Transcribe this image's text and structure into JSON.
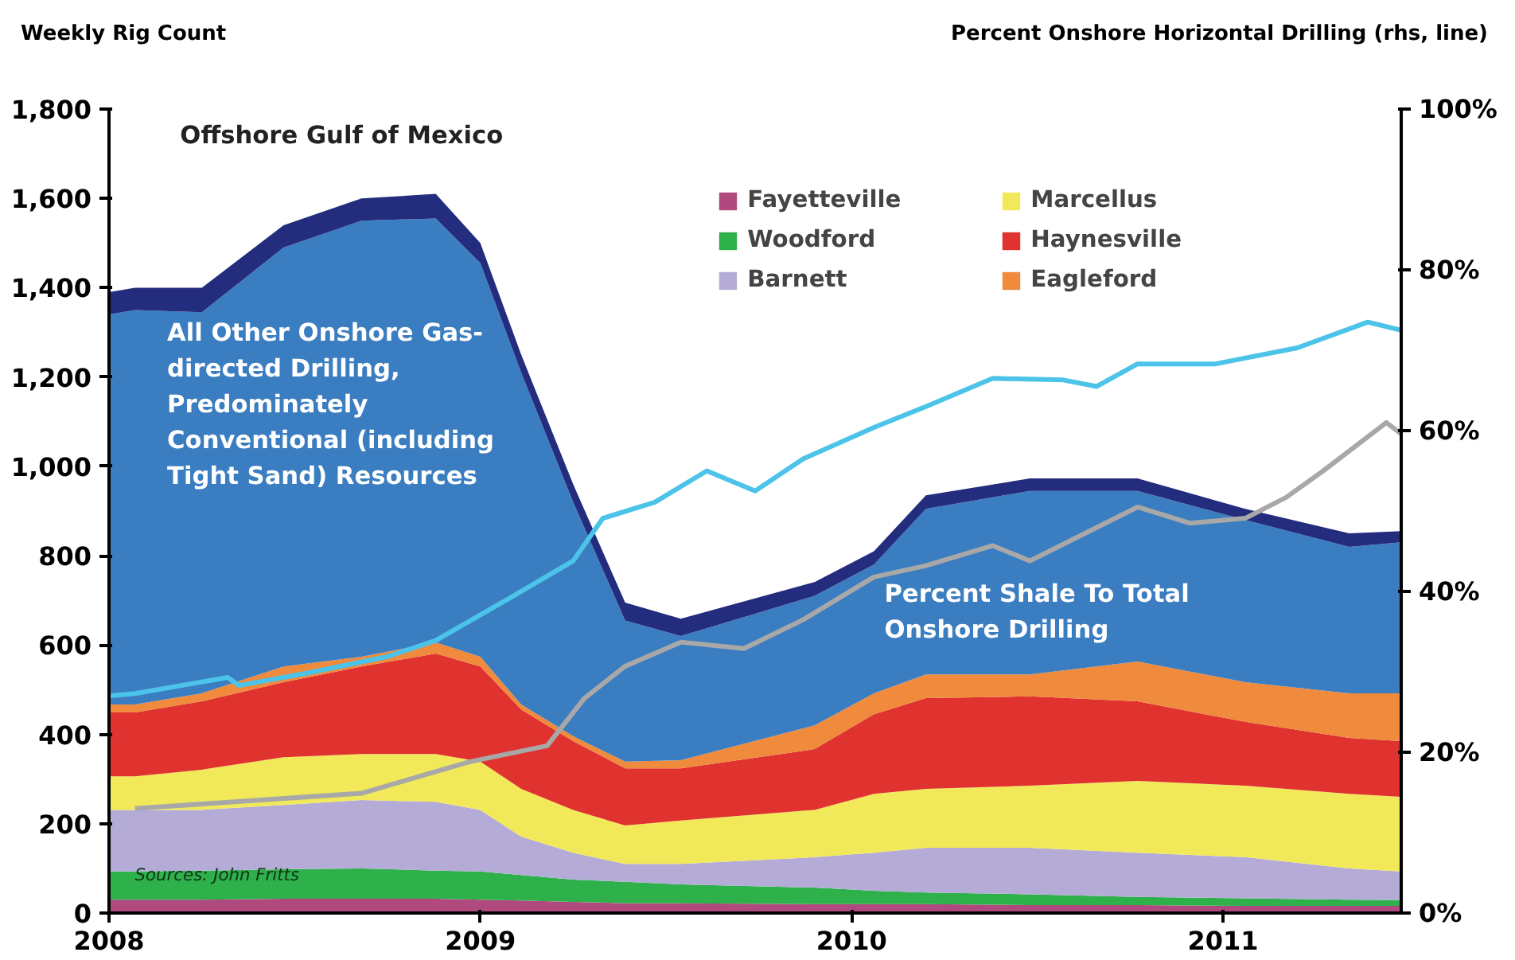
{
  "chart_data": {
    "type": "area",
    "stacked": true,
    "ylabel": "Weekly Rig Count",
    "y2label": "Percent Onshore Horizontal Drilling (rhs, line)",
    "x": [
      2008.0,
      2008.07,
      2008.25,
      2008.47,
      2008.68,
      2008.88,
      2009.0,
      2009.11,
      2009.25,
      2009.39,
      2009.54,
      2009.9,
      2010.06,
      2010.2,
      2010.48,
      2010.77,
      2011.06,
      2011.34,
      2011.48
    ],
    "series": [
      {
        "name": "Fayetteville",
        "color": "#b04a7e",
        "values": [
          30,
          30,
          30,
          32,
          32,
          32,
          30,
          28,
          25,
          22,
          22,
          20,
          20,
          20,
          18,
          18,
          16,
          16,
          16
        ]
      },
      {
        "name": "Woodford",
        "color": "#2eb04b",
        "values": [
          63,
          63,
          65,
          66,
          68,
          63,
          63,
          57,
          50,
          48,
          42,
          37,
          30,
          26,
          24,
          18,
          17,
          14,
          13
        ]
      },
      {
        "name": "Barnett",
        "color": "#b4acd6",
        "values": [
          138,
          138,
          136,
          144,
          153,
          154,
          138,
          86,
          60,
          40,
          46,
          68,
          85,
          100,
          104,
          99,
          92,
          70,
          64
        ]
      },
      {
        "name": "Marcellus",
        "color": "#f2e95a",
        "values": [
          75,
          75,
          90,
          107,
          103,
          107,
          108,
          107,
          96,
          86,
          97,
          106,
          132,
          132,
          139,
          161,
          160,
          167,
          167
        ]
      },
      {
        "name": "Haynesville",
        "color": "#e0322f",
        "values": [
          143,
          143,
          153,
          168,
          196,
          225,
          213,
          178,
          154,
          128,
          117,
          136,
          178,
          203,
          200,
          178,
          143,
          125,
          125
        ]
      },
      {
        "name": "Eagleford",
        "color": "#f08a3c",
        "values": [
          18,
          18,
          18,
          35,
          22,
          25,
          22,
          11,
          11,
          15,
          18,
          53,
          47,
          53,
          49,
          89,
          89,
          100,
          107
        ]
      },
      {
        "color": "#3a7dc0",
        "values": [
          873,
          883,
          853,
          938,
          976,
          949,
          881,
          743,
          524,
          316,
          278,
          290,
          288,
          371,
          411,
          382,
          363,
          328,
          338
        ]
      },
      {
        "color": "#242c7e",
        "values": [
          50,
          50,
          55,
          50,
          50,
          55,
          45,
          40,
          40,
          40,
          39,
          31,
          30,
          30,
          28,
          28,
          25,
          30,
          25
        ]
      },
      {
        "type": "line",
        "axis": "y2",
        "color": "#4cc3e8",
        "x": [
          2008.0,
          2008.07,
          2008.32,
          2008.35,
          2008.54,
          2008.75,
          2008.88,
          2009.08,
          2009.25,
          2009.33,
          2009.47,
          2009.61,
          2009.74,
          2009.87,
          2010.06,
          2010.2,
          2010.38,
          2010.57,
          2010.66,
          2010.77,
          2010.98,
          2011.2,
          2011.39,
          2011.48
        ],
        "values": [
          27,
          27.3,
          29.3,
          28.3,
          29.9,
          31.9,
          33.9,
          39.2,
          43.8,
          49.1,
          51.1,
          55,
          52.5,
          56.5,
          60.4,
          63,
          66.5,
          66.3,
          65.5,
          68.3,
          68.3,
          70.3,
          73.5,
          72.5
        ]
      },
      {
        "type": "line",
        "axis": "y2",
        "color": "#a8a8a8",
        "x": [
          2008.07,
          2008.68,
          2008.97,
          2009.18,
          2009.28,
          2009.39,
          2009.54,
          2009.71,
          2009.87,
          2010.06,
          2010.2,
          2010.38,
          2010.48,
          2010.77,
          2010.91,
          2011.06,
          2011.17,
          2011.27,
          2011.44,
          2011.48
        ],
        "values": [
          13,
          14.9,
          18.8,
          20.8,
          26.7,
          30.7,
          33.7,
          32.9,
          36.5,
          41.8,
          43.2,
          45.7,
          43.8,
          50.5,
          48.5,
          49.1,
          51.7,
          55,
          61,
          59.6
        ]
      }
    ],
    "xlim": [
      2008.0,
      2011.48
    ],
    "xticks": [
      2008,
      2009,
      2010,
      2011
    ],
    "ylim": [
      0,
      1800
    ],
    "yticks": [
      0,
      200,
      400,
      600,
      800,
      {
        "value": 1000,
        "label": "1,000"
      },
      {
        "value": 1200,
        "label": "1,200"
      },
      {
        "value": 1400,
        "label": "1,400"
      },
      {
        "value": 1600,
        "label": "1,600"
      },
      {
        "value": 1800,
        "label": "1,800"
      }
    ],
    "y2lim": [
      0,
      100
    ],
    "y2ticks": [
      {
        "value": 0,
        "label": "0%"
      },
      {
        "value": 20,
        "label": "20%"
      },
      {
        "value": 40,
        "label": "40%"
      },
      {
        "value": 60,
        "label": "60%"
      },
      {
        "value": 80,
        "label": "80%"
      },
      {
        "value": 100,
        "label": "100%"
      }
    ],
    "annotations": [
      "Offshore Gulf of Mexico",
      "All Other Onshore Gas-directed Drilling, Predominately Conventional (including Tight Sand) Resources",
      "Percent Shale To Total Onshore Drilling",
      "Sources: John Fritts"
    ],
    "legend": "top right",
    "grid": false,
    "marker": "none",
    "line_style": "solid"
  }
}
